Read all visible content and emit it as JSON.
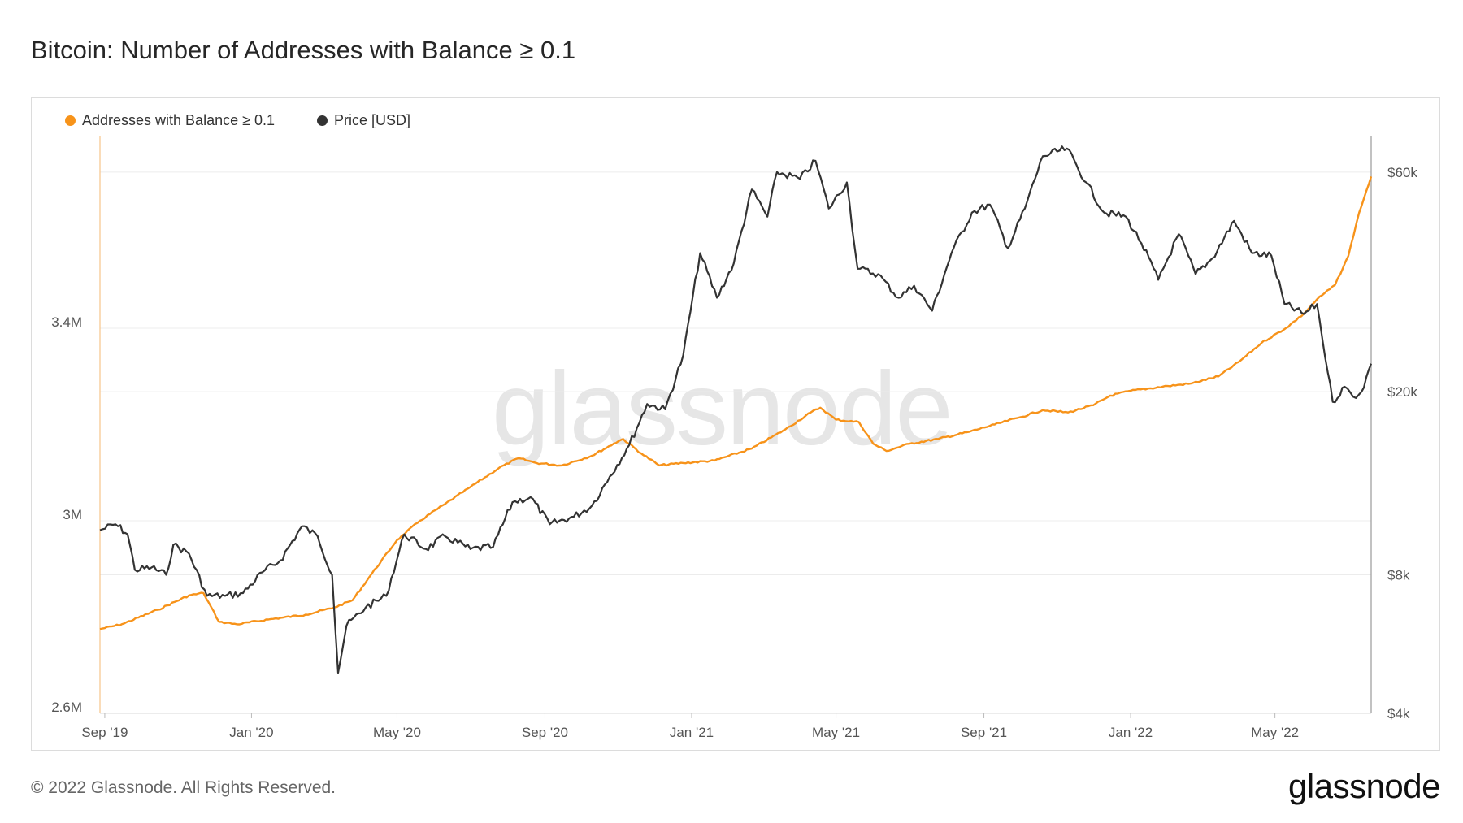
{
  "title": "Bitcoin: Number of Addresses with Balance ≥ 0.1",
  "legend": [
    {
      "label": "Addresses with Balance ≥ 0.1",
      "color": "#f7931a"
    },
    {
      "label": "Price [USD]",
      "color": "#333333"
    }
  ],
  "watermark": "glassnode",
  "footer": "© 2022 Glassnode. All Rights Reserved.",
  "brand": "glassnode",
  "chart_data": {
    "type": "line",
    "title": "Bitcoin: Number of Addresses with Balance ≥ 0.1",
    "x_range": [
      "2019-08-28",
      "2022-07-20"
    ],
    "x_ticks": [
      {
        "date": "2019-09-01",
        "label": "Sep '19"
      },
      {
        "date": "2020-01-01",
        "label": "Jan '20"
      },
      {
        "date": "2020-05-01",
        "label": "May '20"
      },
      {
        "date": "2020-09-01",
        "label": "Sep '20"
      },
      {
        "date": "2021-01-01",
        "label": "Jan '21"
      },
      {
        "date": "2021-05-01",
        "label": "May '21"
      },
      {
        "date": "2021-09-01",
        "label": "Sep '21"
      },
      {
        "date": "2022-01-01",
        "label": "Jan '22"
      },
      {
        "date": "2022-05-01",
        "label": "May '22"
      }
    ],
    "y_left": {
      "scale": "linear",
      "range": [
        2600000,
        3800000
      ],
      "ticks": [
        {
          "value": 2600000,
          "label": "2.6M"
        },
        {
          "value": 3000000,
          "label": "3M"
        },
        {
          "value": 3400000,
          "label": "3.4M"
        }
      ]
    },
    "y_right": {
      "scale": "log",
      "range": [
        4000,
        72000
      ],
      "ticks": [
        {
          "value": 4000,
          "label": "$4k"
        },
        {
          "value": 8000,
          "label": "$8k"
        },
        {
          "value": 20000,
          "label": "$20k"
        },
        {
          "value": 60000,
          "label": "$60k"
        }
      ]
    },
    "grid": true,
    "legend_position": "top-left",
    "series": [
      {
        "name": "Addresses with Balance ≥ 0.1",
        "axis": "left",
        "color": "#f7931a",
        "points": [
          [
            "2019-08-28",
            2775000
          ],
          [
            "2019-09-15",
            2785000
          ],
          [
            "2019-10-15",
            2815000
          ],
          [
            "2019-11-10",
            2845000
          ],
          [
            "2019-11-22",
            2850000
          ],
          [
            "2019-12-05",
            2790000
          ],
          [
            "2019-12-20",
            2785000
          ],
          [
            "2020-01-15",
            2795000
          ],
          [
            "2020-02-15",
            2805000
          ],
          [
            "2020-03-10",
            2820000
          ],
          [
            "2020-03-25",
            2835000
          ],
          [
            "2020-04-10",
            2890000
          ],
          [
            "2020-05-01",
            2960000
          ],
          [
            "2020-05-20",
            3000000
          ],
          [
            "2020-06-10",
            3035000
          ],
          [
            "2020-07-01",
            3070000
          ],
          [
            "2020-07-25",
            3110000
          ],
          [
            "2020-08-10",
            3130000
          ],
          [
            "2020-08-25",
            3120000
          ],
          [
            "2020-09-15",
            3115000
          ],
          [
            "2020-10-10",
            3135000
          ],
          [
            "2020-10-28",
            3160000
          ],
          [
            "2020-11-05",
            3170000
          ],
          [
            "2020-11-20",
            3140000
          ],
          [
            "2020-12-05",
            3115000
          ],
          [
            "2020-12-25",
            3120000
          ],
          [
            "2021-01-20",
            3125000
          ],
          [
            "2021-02-20",
            3150000
          ],
          [
            "2021-03-20",
            3190000
          ],
          [
            "2021-04-10",
            3225000
          ],
          [
            "2021-04-18",
            3235000
          ],
          [
            "2021-05-01",
            3210000
          ],
          [
            "2021-05-20",
            3205000
          ],
          [
            "2021-06-01",
            3160000
          ],
          [
            "2021-06-12",
            3145000
          ],
          [
            "2021-07-01",
            3160000
          ],
          [
            "2021-07-25",
            3170000
          ],
          [
            "2021-08-20",
            3185000
          ],
          [
            "2021-09-10",
            3200000
          ],
          [
            "2021-10-01",
            3215000
          ],
          [
            "2021-10-20",
            3230000
          ],
          [
            "2021-11-10",
            3225000
          ],
          [
            "2021-12-01",
            3240000
          ],
          [
            "2021-12-15",
            3260000
          ],
          [
            "2022-01-01",
            3270000
          ],
          [
            "2022-02-01",
            3280000
          ],
          [
            "2022-02-20",
            3285000
          ],
          [
            "2022-03-15",
            3300000
          ],
          [
            "2022-04-01",
            3330000
          ],
          [
            "2022-04-20",
            3370000
          ],
          [
            "2022-05-10",
            3400000
          ],
          [
            "2022-05-25",
            3430000
          ],
          [
            "2022-06-05",
            3460000
          ],
          [
            "2022-06-20",
            3490000
          ],
          [
            "2022-07-01",
            3550000
          ],
          [
            "2022-07-10",
            3640000
          ],
          [
            "2022-07-20",
            3715000
          ]
        ]
      },
      {
        "name": "Price [USD]",
        "axis": "right",
        "color": "#333333",
        "points": [
          [
            "2019-08-28",
            10000
          ],
          [
            "2019-09-10",
            10300
          ],
          [
            "2019-09-20",
            9800
          ],
          [
            "2019-09-26",
            8200
          ],
          [
            "2019-10-10",
            8300
          ],
          [
            "2019-10-22",
            8000
          ],
          [
            "2019-10-28",
            9300
          ],
          [
            "2019-11-10",
            8900
          ],
          [
            "2019-11-25",
            7200
          ],
          [
            "2019-12-10",
            7200
          ],
          [
            "2019-12-25",
            7300
          ],
          [
            "2020-01-10",
            8100
          ],
          [
            "2020-01-25",
            8600
          ],
          [
            "2020-02-12",
            10200
          ],
          [
            "2020-02-25",
            9700
          ],
          [
            "2020-03-08",
            8000
          ],
          [
            "2020-03-13",
            4900
          ],
          [
            "2020-03-20",
            6200
          ],
          [
            "2020-04-05",
            6800
          ],
          [
            "2020-04-22",
            7200
          ],
          [
            "2020-05-07",
            9800
          ],
          [
            "2020-05-25",
            9100
          ],
          [
            "2020-06-10",
            9700
          ],
          [
            "2020-07-01",
            9100
          ],
          [
            "2020-07-20",
            9200
          ],
          [
            "2020-08-05",
            11500
          ],
          [
            "2020-08-20",
            11800
          ],
          [
            "2020-09-05",
            10300
          ],
          [
            "2020-09-25",
            10700
          ],
          [
            "2020-10-10",
            11300
          ],
          [
            "2020-10-25",
            13100
          ],
          [
            "2020-11-10",
            15300
          ],
          [
            "2020-11-25",
            18800
          ],
          [
            "2020-12-10",
            18300
          ],
          [
            "2020-12-25",
            24000
          ],
          [
            "2021-01-08",
            40000
          ],
          [
            "2021-01-22",
            32000
          ],
          [
            "2021-02-05",
            38000
          ],
          [
            "2021-02-20",
            55000
          ],
          [
            "2021-03-05",
            48000
          ],
          [
            "2021-03-13",
            60000
          ],
          [
            "2021-04-01",
            58000
          ],
          [
            "2021-04-14",
            63500
          ],
          [
            "2021-04-25",
            50000
          ],
          [
            "2021-05-10",
            57000
          ],
          [
            "2021-05-19",
            37000
          ],
          [
            "2021-06-05",
            36000
          ],
          [
            "2021-06-22",
            32000
          ],
          [
            "2021-07-05",
            34000
          ],
          [
            "2021-07-20",
            30000
          ],
          [
            "2021-08-05",
            40000
          ],
          [
            "2021-08-22",
            49000
          ],
          [
            "2021-09-06",
            51000
          ],
          [
            "2021-09-21",
            41000
          ],
          [
            "2021-10-05",
            50000
          ],
          [
            "2021-10-20",
            65000
          ],
          [
            "2021-11-09",
            67500
          ],
          [
            "2021-11-25",
            57000
          ],
          [
            "2021-12-10",
            49000
          ],
          [
            "2021-12-28",
            48000
          ],
          [
            "2022-01-10",
            42000
          ],
          [
            "2022-01-24",
            35000
          ],
          [
            "2022-02-10",
            44000
          ],
          [
            "2022-02-24",
            36000
          ],
          [
            "2022-03-10",
            39000
          ],
          [
            "2022-03-28",
            47000
          ],
          [
            "2022-04-12",
            40000
          ],
          [
            "2022-04-28",
            39500
          ],
          [
            "2022-05-09",
            31000
          ],
          [
            "2022-05-25",
            29500
          ],
          [
            "2022-06-05",
            31000
          ],
          [
            "2022-06-14",
            22000
          ],
          [
            "2022-06-18",
            19000
          ],
          [
            "2022-06-28",
            20500
          ],
          [
            "2022-07-05",
            19500
          ],
          [
            "2022-07-12",
            20000
          ],
          [
            "2022-07-20",
            23000
          ]
        ]
      }
    ]
  }
}
